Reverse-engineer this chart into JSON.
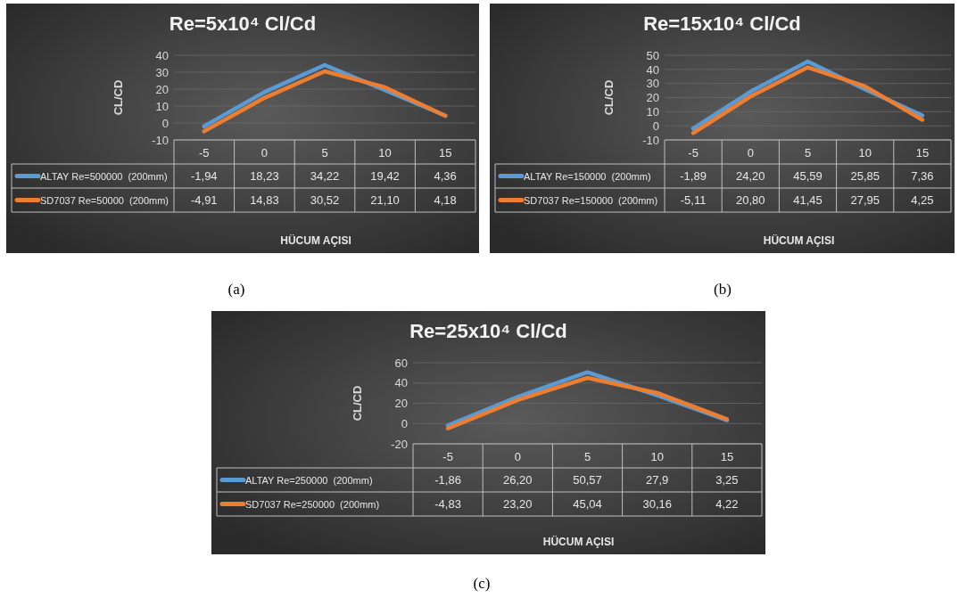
{
  "chart_data": [
    {
      "type": "line",
      "title": "Re=5x10⁴ Cl/Cd",
      "xlabel": "HÜCUM AÇISI",
      "ylabel": "CL/CD",
      "categories": [
        "-5",
        "0",
        "5",
        "10",
        "15"
      ],
      "ylim": [
        -10,
        40
      ],
      "yticks": [
        -10,
        0,
        10,
        20,
        30,
        40
      ],
      "grid": "y",
      "legend": "bottom left",
      "annotations": [
        "(a)"
      ],
      "series": [
        {
          "name": "ALTAY Re=500000  (200mm)",
          "color": "#5b9bd5",
          "values": [
            -1.94,
            18.23,
            34.22,
            19.42,
            4.36
          ],
          "value_labels": [
            "-1,94",
            "18,23",
            "34,22",
            "19,42",
            "4,36"
          ]
        },
        {
          "name": "SD7037 Re=50000  (200mm)",
          "color": "#ed7d31",
          "values": [
            -4.91,
            14.83,
            30.52,
            21.1,
            4.18
          ],
          "value_labels": [
            "-4,91",
            "14,83",
            "30,52",
            "21,10",
            "4,18"
          ]
        }
      ]
    },
    {
      "type": "line",
      "title": "Re=15x10⁴ Cl/Cd",
      "xlabel": "HÜCUM AÇISI",
      "ylabel": "CL/CD",
      "categories": [
        "-5",
        "0",
        "5",
        "10",
        "15"
      ],
      "ylim": [
        -10,
        50
      ],
      "yticks": [
        -10,
        0,
        10,
        20,
        30,
        40,
        50
      ],
      "grid": "y",
      "legend": "bottom left",
      "annotations": [
        "(b)"
      ],
      "series": [
        {
          "name": "ALTAY Re=150000  (200mm)",
          "color": "#5b9bd5",
          "values": [
            -1.89,
            24.2,
            45.59,
            25.85,
            7.36
          ],
          "value_labels": [
            "-1,89",
            "24,20",
            "45,59",
            "25,85",
            "7,36"
          ]
        },
        {
          "name": "SD7037 Re=150000  (200mm)",
          "color": "#ed7d31",
          "values": [
            -5.11,
            20.8,
            41.45,
            27.95,
            4.25
          ],
          "value_labels": [
            "-5,11",
            "20,80",
            "41,45",
            "27,95",
            "4,25"
          ]
        }
      ]
    },
    {
      "type": "line",
      "title": "Re=25x10⁴ Cl/Cd",
      "xlabel": "HÜCUM AÇISI",
      "ylabel": "CL/CD",
      "categories": [
        "-5",
        "0",
        "5",
        "10",
        "15"
      ],
      "ylim": [
        -20,
        60
      ],
      "yticks": [
        -20,
        0,
        20,
        40,
        60
      ],
      "grid": "y",
      "legend": "bottom left",
      "annotations": [
        "(c)"
      ],
      "series": [
        {
          "name": "ALTAY Re=250000  (200mm)",
          "color": "#5b9bd5",
          "values": [
            -1.86,
            26.2,
            50.57,
            27.9,
            3.25
          ],
          "value_labels": [
            "-1,86",
            "26,20",
            "50,57",
            "27,9",
            "3,25"
          ]
        },
        {
          "name": "SD7037 Re=250000  (200mm)",
          "color": "#ed7d31",
          "values": [
            -4.83,
            23.2,
            45.04,
            30.16,
            4.22
          ],
          "value_labels": [
            "-4,83",
            "23,20",
            "45,04",
            "30,16",
            "4,22"
          ]
        }
      ]
    }
  ]
}
